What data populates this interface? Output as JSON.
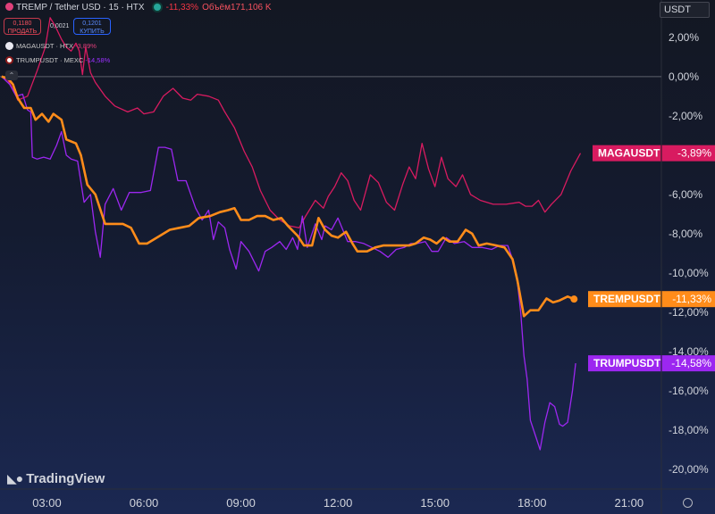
{
  "header": {
    "title": "TREMP / Tether USD · 15 · HTX",
    "change": "-11,33%",
    "volume": "Объём171,106 K"
  },
  "trade": {
    "sell_price": "0,1180",
    "sell_label": "ПРОДАТЬ",
    "spread": "0,0021",
    "buy_price": "0,1201",
    "buy_label": "КУПИТЬ"
  },
  "legend": [
    {
      "name": "MAGAUSDT · HTX",
      "value": "-3,89%"
    },
    {
      "name": "TRUMPUSDT · MEXC",
      "value": "-14,58%"
    }
  ],
  "currency": "USDT",
  "logo": "TradingView",
  "colors": {
    "tremp": "#ff8c1a",
    "maga": "#d81b60",
    "trump": "#9c27f0",
    "axis_text": "#d1d4dc"
  },
  "chart_data": {
    "type": "line",
    "x_unit": "hours",
    "x_ticks": [
      {
        "x": 3,
        "label": "03:00"
      },
      {
        "x": 6,
        "label": "06:00"
      },
      {
        "x": 9,
        "label": "09:00"
      },
      {
        "x": 12,
        "label": "12:00"
      },
      {
        "x": 15,
        "label": "15:00"
      },
      {
        "x": 18,
        "label": "18:00"
      },
      {
        "x": 21,
        "label": "21:00"
      }
    ],
    "y_ticks": [
      {
        "y": 2,
        "label": "2,00%"
      },
      {
        "y": 0,
        "label": "0,00%"
      },
      {
        "y": -2,
        "label": "-2,00%"
      },
      {
        "y": -4,
        "label": "-4,00%"
      },
      {
        "y": -6,
        "label": "-6,00%"
      },
      {
        "y": -8,
        "label": "-8,00%"
      },
      {
        "y": -10,
        "label": "-10,00%"
      },
      {
        "y": -12,
        "label": "-12,00%"
      },
      {
        "y": -14,
        "label": "-14,00%"
      },
      {
        "y": -16,
        "label": "-16,00%"
      },
      {
        "y": -18,
        "label": "-18,00%"
      },
      {
        "y": -20,
        "label": "-20,00%"
      }
    ],
    "xlim": [
      1.55,
      22.0
    ],
    "ylim": [
      -21.0,
      3.9
    ],
    "zero_line": 0,
    "series": [
      {
        "name": "MAGAUSDT",
        "value_label": "-3,89%",
        "points": [
          [
            1.6,
            0
          ],
          [
            1.8,
            -0.2
          ],
          [
            2.0,
            -0.8
          ],
          [
            2.1,
            -1.2
          ],
          [
            2.4,
            -1.0
          ],
          [
            2.7,
            0.3
          ],
          [
            2.95,
            1.5
          ],
          [
            3.1,
            3.0
          ],
          [
            3.25,
            2.6
          ],
          [
            3.45,
            1.9
          ],
          [
            3.6,
            1.5
          ],
          [
            3.75,
            1.3
          ],
          [
            3.9,
            1.7
          ],
          [
            4.0,
            1.3
          ],
          [
            4.1,
            0.1
          ],
          [
            4.2,
            1.5
          ],
          [
            4.35,
            0.2
          ],
          [
            4.5,
            -0.3
          ],
          [
            4.8,
            -1.0
          ],
          [
            5.1,
            -1.5
          ],
          [
            5.5,
            -1.8
          ],
          [
            5.8,
            -1.6
          ],
          [
            6.0,
            -1.9
          ],
          [
            6.3,
            -1.8
          ],
          [
            6.6,
            -1.0
          ],
          [
            6.9,
            -0.6
          ],
          [
            7.2,
            -1.1
          ],
          [
            7.45,
            -1.2
          ],
          [
            7.65,
            -0.9
          ],
          [
            8.0,
            -1.0
          ],
          [
            8.3,
            -1.2
          ],
          [
            8.5,
            -1.8
          ],
          [
            8.8,
            -2.6
          ],
          [
            9.1,
            -3.8
          ],
          [
            9.35,
            -4.6
          ],
          [
            9.6,
            -5.8
          ],
          [
            9.9,
            -6.8
          ],
          [
            10.2,
            -7.3
          ],
          [
            10.5,
            -7.6
          ],
          [
            10.8,
            -7.7
          ],
          [
            11.0,
            -7.1
          ],
          [
            11.3,
            -6.3
          ],
          [
            11.55,
            -6.7
          ],
          [
            11.7,
            -6.1
          ],
          [
            11.9,
            -5.6
          ],
          [
            12.1,
            -4.9
          ],
          [
            12.3,
            -5.3
          ],
          [
            12.5,
            -6.3
          ],
          [
            12.7,
            -6.8
          ],
          [
            13.0,
            -5.0
          ],
          [
            13.25,
            -5.4
          ],
          [
            13.5,
            -6.4
          ],
          [
            13.75,
            -6.8
          ],
          [
            14.0,
            -5.5
          ],
          [
            14.2,
            -4.6
          ],
          [
            14.4,
            -5.2
          ],
          [
            14.6,
            -3.4
          ],
          [
            14.8,
            -4.7
          ],
          [
            15.0,
            -5.6
          ],
          [
            15.2,
            -4.1
          ],
          [
            15.4,
            -5.2
          ],
          [
            15.65,
            -5.6
          ],
          [
            15.85,
            -5.0
          ],
          [
            16.1,
            -6.0
          ],
          [
            16.4,
            -6.3
          ],
          [
            16.8,
            -6.5
          ],
          [
            17.2,
            -6.5
          ],
          [
            17.6,
            -6.4
          ],
          [
            17.8,
            -6.6
          ],
          [
            18.0,
            -6.6
          ],
          [
            18.2,
            -6.3
          ],
          [
            18.4,
            -6.9
          ],
          [
            18.6,
            -6.5
          ],
          [
            18.9,
            -6.0
          ],
          [
            19.2,
            -4.8
          ],
          [
            19.5,
            -3.9
          ]
        ]
      },
      {
        "name": "TRUMPUSDT",
        "value_label": "-14,58%",
        "points": [
          [
            1.6,
            0
          ],
          [
            1.85,
            -0.4
          ],
          [
            2.05,
            -1.0
          ],
          [
            2.25,
            -0.9
          ],
          [
            2.4,
            -1.7
          ],
          [
            2.5,
            -1.8
          ],
          [
            2.55,
            -4.1
          ],
          [
            2.7,
            -4.2
          ],
          [
            2.9,
            -4.1
          ],
          [
            3.1,
            -4.2
          ],
          [
            3.3,
            -3.5
          ],
          [
            3.45,
            -2.8
          ],
          [
            3.6,
            -4.0
          ],
          [
            3.75,
            -4.2
          ],
          [
            3.95,
            -4.3
          ],
          [
            4.15,
            -6.4
          ],
          [
            4.35,
            -6.0
          ],
          [
            4.5,
            -7.9
          ],
          [
            4.65,
            -9.2
          ],
          [
            4.8,
            -6.5
          ],
          [
            5.05,
            -5.7
          ],
          [
            5.3,
            -6.8
          ],
          [
            5.55,
            -5.9
          ],
          [
            5.9,
            -5.9
          ],
          [
            6.2,
            -5.8
          ],
          [
            6.45,
            -3.6
          ],
          [
            6.65,
            -3.6
          ],
          [
            6.85,
            -3.7
          ],
          [
            7.05,
            -5.3
          ],
          [
            7.3,
            -5.3
          ],
          [
            7.6,
            -6.7
          ],
          [
            7.8,
            -7.3
          ],
          [
            8.0,
            -6.8
          ],
          [
            8.15,
            -8.3
          ],
          [
            8.3,
            -7.4
          ],
          [
            8.5,
            -7.7
          ],
          [
            8.65,
            -8.8
          ],
          [
            8.85,
            -9.8
          ],
          [
            9.0,
            -8.4
          ],
          [
            9.25,
            -8.9
          ],
          [
            9.55,
            -9.9
          ],
          [
            9.75,
            -8.9
          ],
          [
            9.95,
            -8.7
          ],
          [
            10.2,
            -8.4
          ],
          [
            10.4,
            -8.8
          ],
          [
            10.6,
            -8.2
          ],
          [
            10.75,
            -8.8
          ],
          [
            10.9,
            -7.1
          ],
          [
            11.05,
            -8.7
          ],
          [
            11.3,
            -7.5
          ],
          [
            11.5,
            -8.3
          ],
          [
            11.6,
            -7.6
          ],
          [
            11.8,
            -7.8
          ],
          [
            12.0,
            -7.2
          ],
          [
            12.3,
            -8.4
          ],
          [
            12.55,
            -8.4
          ],
          [
            12.8,
            -8.5
          ],
          [
            13.05,
            -8.7
          ],
          [
            13.3,
            -8.9
          ],
          [
            13.55,
            -9.2
          ],
          [
            13.8,
            -8.8
          ],
          [
            14.05,
            -8.7
          ],
          [
            14.25,
            -8.5
          ],
          [
            14.45,
            -8.5
          ],
          [
            14.7,
            -8.4
          ],
          [
            14.9,
            -8.9
          ],
          [
            15.1,
            -8.9
          ],
          [
            15.35,
            -8.2
          ],
          [
            15.6,
            -8.5
          ],
          [
            15.9,
            -8.4
          ],
          [
            16.15,
            -8.7
          ],
          [
            16.45,
            -8.7
          ],
          [
            16.75,
            -8.8
          ],
          [
            17.0,
            -8.6
          ],
          [
            17.25,
            -8.6
          ],
          [
            17.4,
            -9.3
          ],
          [
            17.55,
            -10.5
          ],
          [
            17.65,
            -12.0
          ],
          [
            17.75,
            -14.2
          ],
          [
            17.85,
            -15.4
          ],
          [
            17.95,
            -17.5
          ],
          [
            18.15,
            -18.5
          ],
          [
            18.25,
            -19.0
          ],
          [
            18.4,
            -17.6
          ],
          [
            18.55,
            -16.6
          ],
          [
            18.7,
            -16.8
          ],
          [
            18.85,
            -17.7
          ],
          [
            18.95,
            -17.8
          ],
          [
            19.1,
            -17.6
          ],
          [
            19.25,
            -16.0
          ],
          [
            19.35,
            -14.6
          ]
        ]
      },
      {
        "name": "TREMPUSDT",
        "value_label": "-11,33%",
        "points": [
          [
            1.6,
            0
          ],
          [
            1.8,
            -0.1
          ],
          [
            1.95,
            -0.4
          ],
          [
            2.1,
            -1.1
          ],
          [
            2.3,
            -1.6
          ],
          [
            2.5,
            -1.6
          ],
          [
            2.65,
            -2.2
          ],
          [
            2.85,
            -1.9
          ],
          [
            3.05,
            -2.3
          ],
          [
            3.2,
            -1.9
          ],
          [
            3.45,
            -2.2
          ],
          [
            3.6,
            -3.2
          ],
          [
            3.9,
            -3.4
          ],
          [
            4.05,
            -4.0
          ],
          [
            4.25,
            -5.5
          ],
          [
            4.5,
            -6.0
          ],
          [
            4.8,
            -7.5
          ],
          [
            5.05,
            -7.5
          ],
          [
            5.35,
            -7.5
          ],
          [
            5.6,
            -7.7
          ],
          [
            5.85,
            -8.5
          ],
          [
            6.1,
            -8.5
          ],
          [
            6.5,
            -8.1
          ],
          [
            6.8,
            -7.8
          ],
          [
            7.1,
            -7.7
          ],
          [
            7.4,
            -7.6
          ],
          [
            7.7,
            -7.2
          ],
          [
            8.05,
            -7.1
          ],
          [
            8.35,
            -6.9
          ],
          [
            8.6,
            -6.8
          ],
          [
            8.8,
            -6.7
          ],
          [
            9.0,
            -7.3
          ],
          [
            9.25,
            -7.3
          ],
          [
            9.5,
            -7.1
          ],
          [
            9.75,
            -7.1
          ],
          [
            10.0,
            -7.3
          ],
          [
            10.25,
            -7.2
          ],
          [
            10.45,
            -7.6
          ],
          [
            10.75,
            -8.1
          ],
          [
            10.95,
            -8.6
          ],
          [
            11.2,
            -8.6
          ],
          [
            11.4,
            -7.2
          ],
          [
            11.6,
            -7.8
          ],
          [
            11.8,
            -8.1
          ],
          [
            12.0,
            -8.2
          ],
          [
            12.25,
            -7.9
          ],
          [
            12.45,
            -8.5
          ],
          [
            12.6,
            -8.9
          ],
          [
            12.9,
            -8.9
          ],
          [
            13.15,
            -8.7
          ],
          [
            13.4,
            -8.6
          ],
          [
            13.65,
            -8.6
          ],
          [
            13.9,
            -8.6
          ],
          [
            14.2,
            -8.6
          ],
          [
            14.4,
            -8.5
          ],
          [
            14.65,
            -8.2
          ],
          [
            14.85,
            -8.3
          ],
          [
            15.05,
            -8.5
          ],
          [
            15.25,
            -8.2
          ],
          [
            15.45,
            -8.4
          ],
          [
            15.7,
            -8.4
          ],
          [
            15.95,
            -7.8
          ],
          [
            16.15,
            -8.0
          ],
          [
            16.35,
            -8.6
          ],
          [
            16.6,
            -8.5
          ],
          [
            16.9,
            -8.6
          ],
          [
            17.15,
            -8.7
          ],
          [
            17.4,
            -9.3
          ],
          [
            17.55,
            -10.4
          ],
          [
            17.75,
            -12.2
          ],
          [
            17.95,
            -11.9
          ],
          [
            18.2,
            -11.9
          ],
          [
            18.45,
            -11.3
          ],
          [
            18.65,
            -11.5
          ],
          [
            18.85,
            -11.4
          ],
          [
            19.1,
            -11.2
          ],
          [
            19.3,
            -11.33
          ]
        ]
      }
    ]
  }
}
